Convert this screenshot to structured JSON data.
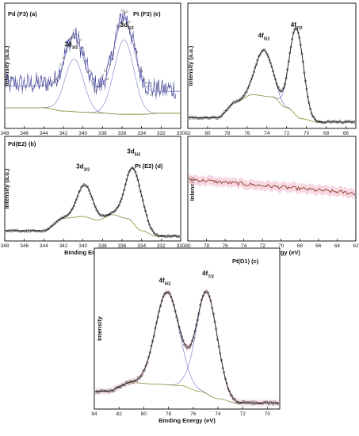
{
  "chart_data": [
    {
      "id": "a",
      "type": "line",
      "title": "Pd (F3)  (a)",
      "ylabel": "Intensity (a.u.)",
      "xlabel": "",
      "xlim": [
        348,
        330
      ],
      "xticks": [
        348,
        346,
        344,
        342,
        340,
        338,
        336,
        334,
        332,
        330
      ],
      "peak_labels": [
        {
          "text": "3d",
          "sub": "3/2",
          "x": 341.2,
          "y": 0.72
        },
        {
          "text": "3d",
          "sub": "5/2",
          "x": 335.5,
          "y": 0.9
        }
      ],
      "baseline": [
        [
          344,
          0.16
        ],
        [
          342,
          0.13
        ],
        [
          340,
          0.12
        ],
        [
          338,
          0.11
        ],
        [
          336,
          0.1
        ],
        [
          334,
          0.1
        ],
        [
          332,
          0.11
        ]
      ],
      "fit": {
        "peaks": [
          {
            "c": 340.9,
            "a": 0.48,
            "w": 0.95
          },
          {
            "c": 335.8,
            "a": 0.68,
            "w": 1.0
          }
        ]
      },
      "raw": {
        "x_from": 348,
        "x_to": 330.5,
        "step": 0.09,
        "noise": 0.09
      },
      "colors": {
        "data": "#2e2e8e",
        "fit": "#7b7bc6",
        "baseline": "#8f8f2a",
        "circles": "#666666"
      }
    },
    {
      "id": "e",
      "type": "line",
      "title": "Pt (F3)  (e)",
      "ylabel": "Intensity (a.u.)",
      "xlabel": "",
      "xlim": [
        82,
        65
      ],
      "xticks": [
        82,
        80,
        78,
        76,
        74,
        72,
        70,
        68,
        66
      ],
      "peak_labels": [
        {
          "text": "4f",
          "sub": "5/2",
          "x": 74.3,
          "y": 0.8
        },
        {
          "text": "4f",
          "sub": "7/2",
          "x": 71.0,
          "y": 0.9
        }
      ],
      "baseline": [
        [
          79,
          0.07
        ],
        [
          77,
          0.22
        ],
        [
          75.5,
          0.28
        ],
        [
          73.5,
          0.26
        ],
        [
          72,
          0.16
        ],
        [
          70.5,
          0.06
        ],
        [
          69,
          0.03
        ]
      ],
      "fit": {
        "peaks": [
          {
            "c": 74.3,
            "a": 0.42,
            "w": 0.85
          },
          {
            "c": 71.0,
            "a": 0.8,
            "w": 0.7
          }
        ]
      },
      "colors": {
        "data": "#1a1a1a",
        "fit": "#6f6fd0",
        "baseline": "#9a9a3a"
      }
    },
    {
      "id": "b",
      "type": "line",
      "title": "Pd(E2)  (b)",
      "ylabel": "Intensity (a.u.)",
      "xlabel": "Binding Energy (eV)",
      "xlim": [
        348,
        330
      ],
      "xticks": [
        348,
        346,
        344,
        342,
        340,
        338,
        336,
        334,
        332,
        330
      ],
      "peak_labels": [
        {
          "text": "3d",
          "sub": "3/2",
          "x": 340.0,
          "y": 0.78
        },
        {
          "text": "3d",
          "sub": "5/2",
          "x": 334.8,
          "y": 0.95
        }
      ],
      "baseline": [
        [
          344,
          0.08
        ],
        [
          342,
          0.22
        ],
        [
          340,
          0.24
        ],
        [
          338.5,
          0.2
        ],
        [
          337,
          0.26
        ],
        [
          335.5,
          0.22
        ],
        [
          334,
          0.08
        ],
        [
          332.5,
          0.02
        ]
      ],
      "fit": {
        "peaks": [
          {
            "c": 339.8,
            "a": 0.36,
            "w": 0.8
          },
          {
            "c": 334.8,
            "a": 0.62,
            "w": 0.85
          }
        ]
      },
      "colors": {
        "data": "#1a1a1a",
        "fit": "#6f6fd0",
        "baseline": "#9a9a3a"
      }
    },
    {
      "id": "d",
      "type": "line",
      "title": "Pt (E2)  (d)",
      "ylabel": "Intensity",
      "xlabel": "Binding Energy (eV)",
      "xlim": [
        80,
        62
      ],
      "xticks": [
        80,
        78,
        76,
        74,
        72,
        70,
        68,
        66,
        64,
        62
      ],
      "trend": {
        "y_start": 0.66,
        "y_end": 0.5,
        "noise": 0.04
      },
      "colors": {
        "data": "#7a2a10",
        "highlight": "#f4c8d4"
      }
    },
    {
      "id": "c",
      "type": "line",
      "title": "Pt(D1) (c)",
      "ylabel": "Intensity",
      "xlabel": "Binding Energy (eV)",
      "xlim": [
        84,
        69
      ],
      "xticks": [
        84,
        82,
        80,
        78,
        76,
        74,
        72,
        70
      ],
      "peak_labels": [
        {
          "text": "4f",
          "sub": "5/2",
          "x": 78.3,
          "y": 0.85
        },
        {
          "text": "4f",
          "sub": "7/2",
          "x": 74.8,
          "y": 0.9
        }
      ],
      "baseline": [
        [
          83,
          0.1
        ],
        [
          81,
          0.16
        ],
        [
          79,
          0.15
        ],
        [
          77,
          0.14
        ],
        [
          75.5,
          0.1
        ],
        [
          74,
          0.05
        ],
        [
          72.5,
          0.02
        ]
      ],
      "fit": {
        "peaks": [
          {
            "c": 78.1,
            "a": 0.64,
            "w": 0.95
          },
          {
            "c": 74.9,
            "a": 0.7,
            "w": 0.85
          }
        ]
      },
      "colors": {
        "data": "#1a1a1a",
        "fit": "#6f6fd0",
        "baseline": "#9a9a3a",
        "highlight": "#f4c8d4"
      }
    }
  ]
}
